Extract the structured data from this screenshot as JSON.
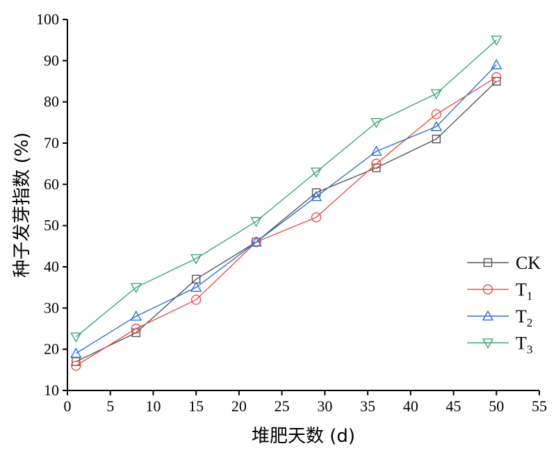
{
  "chart_data": {
    "type": "line",
    "xlabel": "堆肥天数 (d)",
    "ylabel": "种子发芽指数 (%)",
    "xlim": [
      0,
      55
    ],
    "ylim": [
      10,
      100
    ],
    "xticks": [
      0,
      5,
      10,
      15,
      20,
      25,
      30,
      35,
      40,
      45,
      50,
      55
    ],
    "yticks": [
      10,
      20,
      30,
      40,
      50,
      60,
      70,
      80,
      90,
      100
    ],
    "x": [
      1,
      8,
      15,
      22,
      29,
      36,
      43,
      50
    ],
    "grid": false,
    "legend_position": "bottom-right",
    "series": [
      {
        "name": "CK",
        "base": "CK",
        "sub": "",
        "color": "#555555",
        "marker": "square",
        "values": [
          17,
          24,
          37,
          46,
          58,
          64,
          71,
          85
        ]
      },
      {
        "name": "T1",
        "base": "T",
        "sub": "1",
        "color": "#e8504a",
        "marker": "circle",
        "values": [
          16,
          25,
          32,
          46,
          52,
          65,
          77,
          86
        ]
      },
      {
        "name": "T2",
        "base": "T",
        "sub": "2",
        "color": "#2f6fd6",
        "marker": "triangle-up",
        "values": [
          19,
          28,
          35,
          46,
          57,
          68,
          74,
          89
        ]
      },
      {
        "name": "T3",
        "base": "T",
        "sub": "3",
        "color": "#3aa876",
        "marker": "triangle-down",
        "values": [
          23,
          35,
          42,
          51,
          63,
          75,
          82,
          95
        ]
      }
    ]
  }
}
